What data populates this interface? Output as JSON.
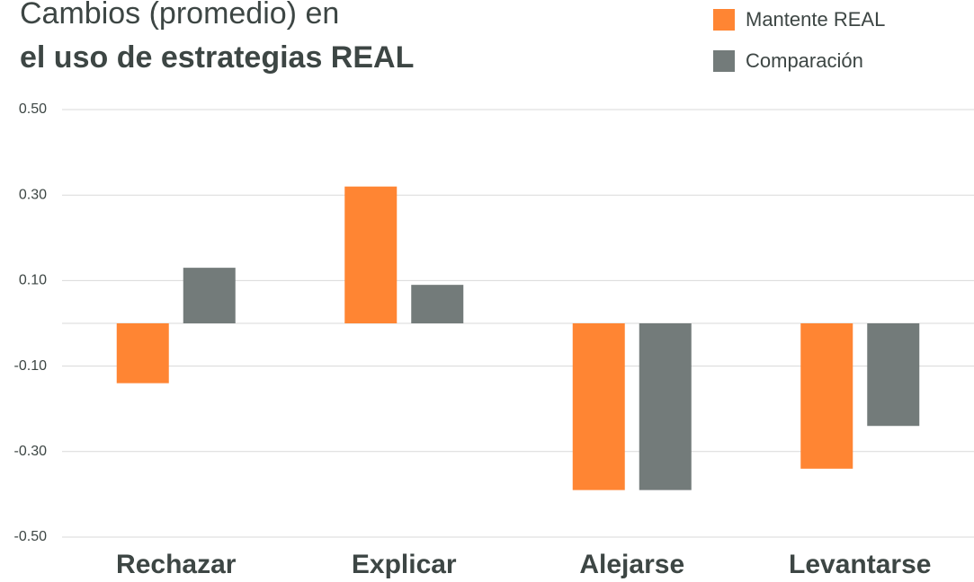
{
  "chart_data": {
    "type": "bar",
    "title": [
      "Cambios (promedio) en",
      "el uso de estrategias REAL"
    ],
    "categories": [
      "Rechazar",
      "Explicar",
      "Alejarse",
      "Levantarse"
    ],
    "series": [
      {
        "name": "Mantente REAL",
        "color": "#ff8533",
        "values": [
          -0.14,
          0.32,
          -0.39,
          -0.34
        ]
      },
      {
        "name": "Comparación",
        "color": "#737b7a",
        "values": [
          0.13,
          0.09,
          -0.39,
          -0.24
        ]
      }
    ],
    "ylim": [
      -0.5,
      0.5
    ],
    "yticks": [
      {
        "value": 0.5,
        "label": "0.50"
      },
      {
        "value": 0.3,
        "label": "0.30"
      },
      {
        "value": 0.1,
        "label": "0.10"
      },
      {
        "value": -0.1,
        "label": "-0.10"
      },
      {
        "value": -0.3,
        "label": "-0.30"
      },
      {
        "value": -0.5,
        "label": "-0.50"
      }
    ],
    "grid": true
  }
}
